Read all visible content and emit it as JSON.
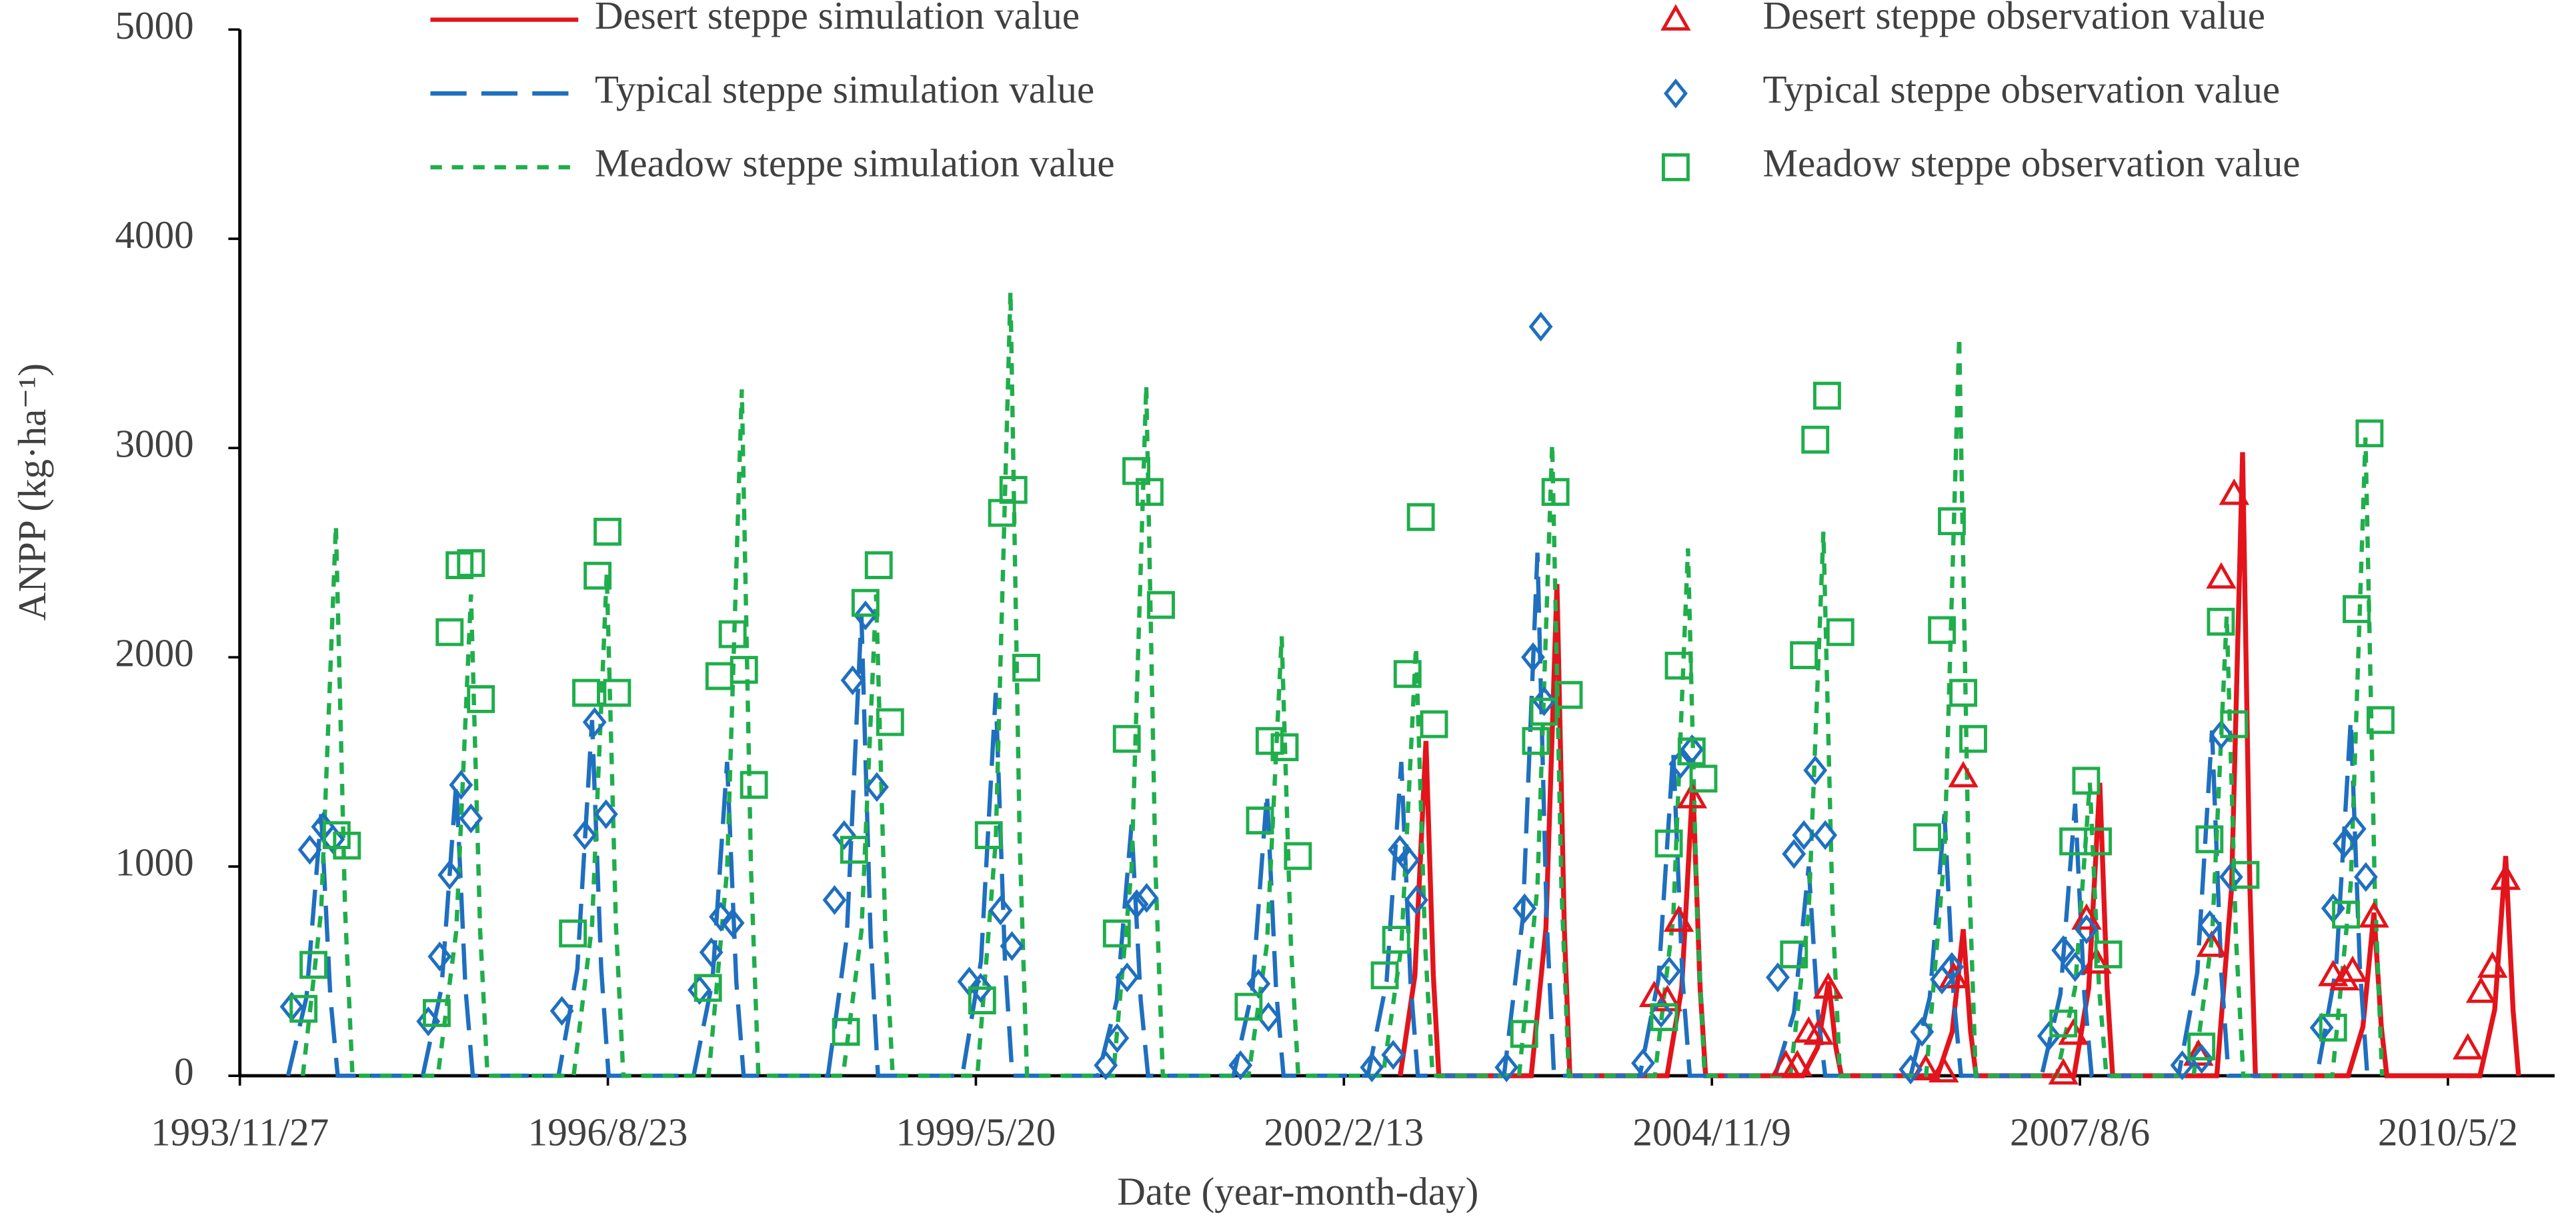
{
  "chart_data": {
    "type": "combo",
    "x_label": "Date (year-month-day)",
    "y_label": "ANPP (kg·ha⁻¹)",
    "xlim": [
      "1993-11-27",
      "2011-02-16"
    ],
    "xticks": [
      {
        "value": "1993-11-27",
        "label": "1993/11/27"
      },
      {
        "value": "1996-08-23",
        "label": "1996/8/23"
      },
      {
        "value": "1999-05-20",
        "label": "1999/5/20"
      },
      {
        "value": "2002-02-13",
        "label": "2002/2/13"
      },
      {
        "value": "2004-11-09",
        "label": "2004/11/9"
      },
      {
        "value": "2007-08-06",
        "label": "2007/8/6"
      },
      {
        "value": "2010-05-02",
        "label": "2010/5/2"
      }
    ],
    "ylim": [
      0,
      5000
    ],
    "yticks": [
      0,
      1000,
      2000,
      3000,
      4000,
      5000
    ],
    "series": [
      {
        "name": "Desert steppe simulation value",
        "type": "line",
        "dash": "solid",
        "color": "#e3141b",
        "x": [
          "2002-07-16",
          "2002-08-25",
          "2002-09-24",
          "2002-10-14",
          "2002-10-29",
          "2003-07-07",
          "2003-08-16",
          "2003-09-15",
          "2003-10-05",
          "2003-10-20",
          "2004-07-10",
          "2004-08-19",
          "2004-09-18",
          "2004-10-08",
          "2004-10-23",
          "2005-07-14",
          "2005-08-23",
          "2005-09-22",
          "2005-10-12",
          "2005-10-27",
          "2006-07-15",
          "2006-08-24",
          "2006-09-23",
          "2006-10-13",
          "2006-10-28",
          "2007-07-21",
          "2007-08-30",
          "2007-09-29",
          "2007-10-19",
          "2007-11-03",
          "2008-08-12",
          "2008-09-21",
          "2008-10-21",
          "2008-11-10",
          "2008-11-25",
          "2009-08-04",
          "2009-09-13",
          "2009-10-13",
          "2009-11-02",
          "2009-11-17",
          "2010-07-28",
          "2010-09-06",
          "2010-10-06",
          "2010-10-26",
          "2010-11-10"
        ],
        "values": [
          0,
          480,
          1600,
          480,
          0,
          0,
          705,
          2350,
          705,
          0,
          0,
          420,
          1400,
          420,
          0,
          0,
          135,
          450,
          135,
          0,
          0,
          210,
          700,
          210,
          0,
          0,
          420,
          1400,
          420,
          0,
          0,
          894,
          2980,
          894,
          0,
          0,
          234,
          780,
          234,
          0,
          0,
          315,
          1050,
          315,
          0
        ]
      },
      {
        "name": "Typical steppe simulation value",
        "type": "line",
        "dash": "long",
        "color": "#1f6fbf",
        "x": [
          "1994-04-07",
          "1994-05-27",
          "1994-07-06",
          "1994-07-31",
          "1994-08-20",
          "1995-04-08",
          "1995-05-29",
          "1995-07-08",
          "1995-08-02",
          "1995-08-22",
          "1996-04-11",
          "1996-06-01",
          "1996-07-11",
          "1996-08-05",
          "1996-08-25",
          "1997-04-13",
          "1997-06-03",
          "1997-07-13",
          "1997-08-07",
          "1997-08-27",
          "1998-04-13",
          "1998-06-03",
          "1998-07-13",
          "1998-08-07",
          "1998-08-27",
          "1999-04-13",
          "1999-06-03",
          "1999-07-13",
          "1999-08-07",
          "1999-08-27",
          "2000-04-16",
          "2000-06-06",
          "2000-07-16",
          "2000-08-10",
          "2000-08-30",
          "2001-04-19",
          "2001-06-09",
          "2001-07-19",
          "2001-08-13",
          "2001-09-02",
          "2002-04-19",
          "2002-06-09",
          "2002-07-19",
          "2002-08-13",
          "2002-09-02",
          "2003-04-24",
          "2003-06-14",
          "2003-07-24",
          "2003-08-18",
          "2003-09-07",
          "2004-04-27",
          "2004-06-17",
          "2004-07-27",
          "2004-08-21",
          "2004-09-10",
          "2005-04-30",
          "2005-06-20",
          "2005-07-30",
          "2005-08-24",
          "2005-09-13",
          "2006-05-03",
          "2006-06-24",
          "2006-08-03",
          "2006-08-28",
          "2006-09-17",
          "2007-04-24",
          "2007-06-14",
          "2007-07-24",
          "2007-08-18",
          "2007-09-07",
          "2008-04-30",
          "2008-06-20",
          "2008-07-30",
          "2008-08-24",
          "2008-09-13",
          "2009-05-11",
          "2009-07-02",
          "2009-08-11",
          "2009-09-05",
          "2009-09-25"
        ],
        "values": [
          0,
          375,
          1250,
          375,
          0,
          0,
          420,
          1400,
          420,
          0,
          0,
          510,
          1700,
          510,
          0,
          0,
          450,
          1500,
          450,
          0,
          0,
          660,
          2200,
          660,
          0,
          0,
          549,
          1830,
          549,
          0,
          0,
          360,
          1200,
          360,
          0,
          0,
          405,
          1350,
          405,
          0,
          0,
          450,
          1500,
          450,
          0,
          0,
          750,
          2500,
          750,
          0,
          0,
          465,
          1550,
          465,
          0,
          0,
          300,
          1000,
          300,
          0,
          0,
          375,
          1250,
          375,
          0,
          0,
          390,
          1300,
          390,
          0,
          0,
          495,
          1650,
          495,
          0,
          0,
          510,
          1700,
          510,
          0
        ]
      },
      {
        "name": "Meadow steppe simulation value",
        "type": "line",
        "dash": "short",
        "color": "#1fae4b",
        "x": [
          "1994-05-17",
          "1994-07-06",
          "1994-08-15",
          "1994-09-09",
          "1994-09-29",
          "1995-05-19",
          "1995-07-08",
          "1995-08-17",
          "1995-09-11",
          "1995-10-01",
          "1996-05-22",
          "1996-07-11",
          "1996-08-20",
          "1996-09-14",
          "1996-10-04",
          "1997-05-24",
          "1997-07-13",
          "1997-08-22",
          "1997-09-16",
          "1997-10-06",
          "1998-05-24",
          "1998-07-13",
          "1998-08-22",
          "1998-09-16",
          "1998-10-06",
          "1999-05-24",
          "1999-07-13",
          "1999-08-22",
          "1999-09-16",
          "1999-10-06",
          "2000-05-27",
          "2000-07-16",
          "2000-08-25",
          "2000-09-19",
          "2000-10-09",
          "2001-05-30",
          "2001-07-19",
          "2001-08-28",
          "2001-09-22",
          "2001-10-12",
          "2002-05-30",
          "2002-07-19",
          "2002-08-28",
          "2002-09-22",
          "2002-10-12",
          "2003-06-04",
          "2003-07-24",
          "2003-09-02",
          "2003-09-27",
          "2003-10-17",
          "2004-06-07",
          "2004-07-27",
          "2004-09-05",
          "2004-09-30",
          "2004-10-20",
          "2005-06-10",
          "2005-07-30",
          "2005-09-08",
          "2005-10-03",
          "2005-10-23",
          "2006-06-14",
          "2006-08-03",
          "2006-09-12",
          "2006-10-07",
          "2006-10-27",
          "2007-06-04",
          "2007-07-24",
          "2007-09-02",
          "2007-09-27",
          "2007-10-17",
          "2008-06-10",
          "2008-07-30",
          "2008-09-08",
          "2008-10-03",
          "2008-10-23",
          "2009-06-22",
          "2009-08-11",
          "2009-09-20",
          "2009-10-15",
          "2009-11-04"
        ],
        "values": [
          0,
          789,
          2630,
          789,
          0,
          0,
          690,
          2300,
          690,
          0,
          0,
          720,
          2400,
          720,
          0,
          0,
          984,
          3280,
          984,
          0,
          0,
          690,
          2300,
          690,
          0,
          0,
          1125,
          3750,
          1125,
          0,
          0,
          990,
          3300,
          990,
          0,
          0,
          630,
          2100,
          630,
          0,
          0,
          615,
          2050,
          615,
          0,
          0,
          906,
          3020,
          906,
          0,
          0,
          756,
          2520,
          756,
          0,
          0,
          780,
          2600,
          780,
          0,
          0,
          1059,
          3530,
          1059,
          0,
          0,
          420,
          1400,
          420,
          0,
          0,
          660,
          2200,
          660,
          0,
          0,
          915,
          3050,
          915,
          0
        ]
      },
      {
        "name": "Desert steppe observation value",
        "type": "scatter",
        "marker": "triangle",
        "color": "#e3141b",
        "x": [
          "2004-06-05",
          "2004-07-11",
          "2004-08-11",
          "2004-09-16",
          "2005-05-29",
          "2005-06-29",
          "2005-07-30",
          "2005-08-26",
          "2005-09-21",
          "2006-06-13",
          "2006-08-01",
          "2006-08-28",
          "2006-09-23",
          "2007-06-22",
          "2007-07-19",
          "2007-08-24",
          "2007-09-20",
          "2008-06-23",
          "2008-07-29",
          "2008-08-24",
          "2008-09-28",
          "2009-06-24",
          "2009-07-25",
          "2009-08-16",
          "2009-10-13",
          "2010-06-25",
          "2010-07-31",
          "2010-08-31",
          "2010-10-06"
        ],
        "values": [
          380,
          360,
          740,
          1330,
          50,
          50,
          210,
          200,
          420,
          30,
          20,
          470,
          1430,
          10,
          200,
          750,
          540,
          100,
          620,
          2380,
          2780,
          480,
          460,
          500,
          760,
          130,
          400,
          520,
          940
        ]
      },
      {
        "name": "Typical steppe observation value",
        "type": "scatter",
        "marker": "diamond",
        "color": "#1f6fbf",
        "x": [
          "1994-04-17",
          "1994-06-05",
          "1994-07-11",
          "1994-08-07",
          "1995-04-23",
          "1995-05-24",
          "1995-06-20",
          "1995-07-21",
          "1995-08-17",
          "1996-04-20",
          "1996-06-21",
          "1996-07-18",
          "1996-08-18",
          "1997-04-29",
          "1997-05-31",
          "1997-06-26",
          "1997-07-28",
          "1998-05-01",
          "1998-05-27",
          "1998-06-19",
          "1998-07-24",
          "1998-08-24",
          "1999-05-02",
          "1999-06-02",
          "1999-07-26",
          "1999-08-26",
          "2000-05-07",
          "2000-06-07",
          "2000-07-04",
          "2000-07-30",
          "2000-08-26",
          "2001-05-08",
          "2001-06-26",
          "2001-07-23",
          "2002-04-30",
          "2002-06-27",
          "2002-07-15",
          "2002-08-06",
          "2002-08-29",
          "2003-05-01",
          "2003-06-19",
          "2003-07-12",
          "2003-08-02",
          "2003-08-11",
          "2004-05-06",
          "2004-06-24",
          "2004-07-16",
          "2004-08-16",
          "2004-09-16",
          "2005-05-07",
          "2005-06-20",
          "2005-07-17",
          "2005-08-17",
          "2005-09-13",
          "2006-05-03",
          "2006-06-03",
          "2006-07-27",
          "2006-08-23",
          "2007-05-14",
          "2007-06-22",
          "2007-07-24",
          "2007-08-24",
          "2008-05-10",
          "2008-07-02",
          "2008-07-24",
          "2008-08-24",
          "2008-09-20",
          "2009-05-24",
          "2009-06-24",
          "2009-07-25",
          "2009-08-21",
          "2009-09-21"
        ],
        "values": [
          330,
          1080,
          1190,
          1130,
          260,
          570,
          960,
          1390,
          1230,
          310,
          1150,
          1690,
          1250,
          410,
          590,
          760,
          730,
          840,
          1150,
          1890,
          2200,
          1380,
          450,
          420,
          790,
          620,
          50,
          180,
          470,
          820,
          850,
          50,
          440,
          280,
          40,
          100,
          1080,
          1030,
          840,
          40,
          800,
          2000,
          3580,
          1790,
          60,
          300,
          500,
          1490,
          1560,
          470,
          1060,
          1150,
          1460,
          1150,
          30,
          210,
          460,
          520,
          190,
          600,
          520,
          700,
          50,
          80,
          720,
          1630,
          950,
          230,
          800,
          1110,
          1180,
          950
        ]
      },
      {
        "name": "Meadow steppe observation value",
        "type": "scatter",
        "marker": "square",
        "color": "#1fae4b",
        "x": [
          "1994-05-19",
          "1994-06-15",
          "1994-08-17",
          "1994-09-14",
          "1995-05-16",
          "1995-06-20",
          "1995-07-17",
          "1995-08-17",
          "1995-09-13",
          "1996-05-20",
          "1996-06-25",
          "1996-07-26",
          "1996-08-22",
          "1996-09-17",
          "1997-05-22",
          "1997-06-22",
          "1997-07-28",
          "1997-08-28",
          "1997-09-24",
          "1998-06-01",
          "1998-06-23",
          "1998-07-24",
          "1998-08-29",
          "1998-09-29",
          "1999-06-06",
          "1999-06-24",
          "1999-07-30",
          "1999-08-30",
          "1999-10-04",
          "2000-06-06",
          "2000-07-03",
          "2000-07-29",
          "2000-09-03",
          "2000-10-04",
          "2001-05-30",
          "2001-06-30",
          "2001-07-26",
          "2001-09-05",
          "2001-10-11",
          "2002-06-04",
          "2002-07-05",
          "2002-08-05",
          "2002-09-10",
          "2002-10-16",
          "2003-06-18",
          "2003-07-20",
          "2003-08-11",
          "2003-09-11",
          "2003-10-17",
          "2004-07-02",
          "2004-07-15",
          "2004-08-11",
          "2004-09-15",
          "2004-10-17",
          "2005-06-20",
          "2005-07-17",
          "2005-08-17",
          "2005-09-18",
          "2005-10-24",
          "2006-06-17",
          "2006-07-27",
          "2006-08-23",
          "2006-09-23",
          "2006-10-20",
          "2007-06-22",
          "2007-07-19",
          "2007-08-23",
          "2007-09-24",
          "2007-10-22",
          "2008-07-01",
          "2008-07-23",
          "2008-08-23",
          "2008-09-28",
          "2008-10-29",
          "2009-06-24",
          "2009-07-29",
          "2009-08-27",
          "2009-10-01",
          "2009-10-31"
        ],
        "values": [
          320,
          530,
          1150,
          1100,
          300,
          2120,
          2440,
          2450,
          1800,
          680,
          1830,
          2390,
          2600,
          1830,
          420,
          1910,
          2110,
          1940,
          1390,
          210,
          1080,
          2260,
          2440,
          1690,
          360,
          1150,
          2690,
          2800,
          1950,
          680,
          1610,
          2890,
          2790,
          2250,
          330,
          1220,
          1600,
          1570,
          1050,
          480,
          650,
          1920,
          2670,
          1680,
          200,
          1600,
          1740,
          2790,
          1820,
          280,
          1110,
          1960,
          1550,
          1420,
          580,
          2010,
          3040,
          3250,
          2120,
          1140,
          2130,
          2650,
          1830,
          1610,
          250,
          1120,
          1410,
          1120,
          580,
          140,
          1130,
          2170,
          1680,
          960,
          230,
          770,
          2230,
          3070,
          1700
        ]
      }
    ]
  }
}
